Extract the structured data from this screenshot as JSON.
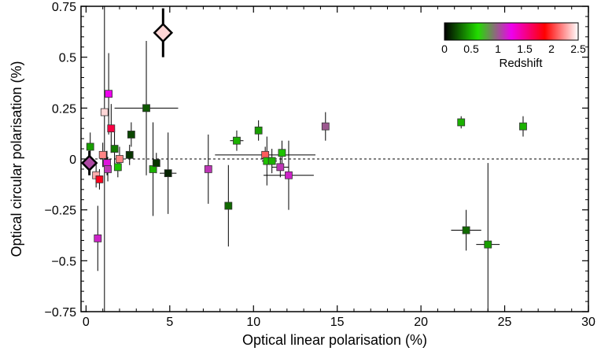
{
  "chart_data": {
    "type": "scatter",
    "xlabel": "Optical linear polarisation (%)",
    "ylabel": "Optical circular polarisation (%)",
    "xlim": [
      -0.3,
      30
    ],
    "ylim": [
      -0.75,
      0.75
    ],
    "x_ticks": [
      0,
      5,
      10,
      15,
      20,
      25,
      30
    ],
    "x_tick_labels": [
      "0",
      "5",
      "10",
      "15",
      "20",
      "25",
      "30"
    ],
    "y_ticks": [
      0.75,
      0.5,
      0.25,
      0,
      -0.25,
      -0.5,
      -0.75
    ],
    "y_tick_labels": [
      "0.75",
      "0.5",
      "0.25",
      "0",
      "−0.25",
      "−0.5",
      "−0.75"
    ],
    "zero_line": "dashed",
    "colorbar": {
      "label": "Redshift",
      "range": [
        0,
        2.5
      ],
      "ticks": [
        0,
        0.5,
        1,
        1.5,
        2,
        2.5
      ],
      "tick_labels": [
        "0",
        "0.5",
        "1",
        "1.5",
        "2",
        "2.5"
      ],
      "stops": [
        "#000000",
        "#22dd00",
        "#ee00ee",
        "#ff0000",
        "#ffffff"
      ],
      "placement": "top-right"
    },
    "points": [
      {
        "x": 4.6,
        "y": 0.62,
        "yerr": 0.12,
        "xerr": 0.1,
        "z": 2.4,
        "marker": "diamond"
      },
      {
        "x": 0.2,
        "y": -0.02,
        "yerr": 0.06,
        "xerr": 0.3,
        "z": 1.05,
        "marker": "diamond"
      },
      {
        "x": 0.25,
        "y": 0.06,
        "yerr": 0.07,
        "xerr": 0.1,
        "z": 0.45,
        "marker": "square"
      },
      {
        "x": 0.6,
        "y": -0.08,
        "yerr": 0.06,
        "xerr": 0.1,
        "z": 2.3,
        "marker": "square"
      },
      {
        "x": 0.7,
        "y": -0.39,
        "yerr": 0.16,
        "xerr": 0.1,
        "z": 1.15,
        "marker": "square"
      },
      {
        "x": 0.8,
        "y": -0.1,
        "yerr": 0.05,
        "xerr": 0.1,
        "z": 1.8,
        "marker": "square"
      },
      {
        "x": 1.0,
        "y": 0.02,
        "yerr": 0.06,
        "xerr": 0.1,
        "z": 2.2,
        "marker": "square"
      },
      {
        "x": 1.1,
        "y": 0.23,
        "yerr": 0.98,
        "xerr": 0.1,
        "z": 2.4,
        "marker": "square"
      },
      {
        "x": 1.25,
        "y": -0.02,
        "yerr": 0.06,
        "xerr": 0.1,
        "z": 1.2,
        "marker": "square"
      },
      {
        "x": 1.3,
        "y": -0.05,
        "yerr": 0.06,
        "xerr": 0.1,
        "z": 1.1,
        "marker": "square"
      },
      {
        "x": 1.35,
        "y": 0.32,
        "yerr": 0.2,
        "xerr": 0.1,
        "z": 1.25,
        "marker": "square"
      },
      {
        "x": 1.5,
        "y": 0.15,
        "yerr": 0.12,
        "xerr": 0.1,
        "z": 1.7,
        "marker": "square"
      },
      {
        "x": 1.7,
        "y": 0.05,
        "yerr": 0.1,
        "xerr": 0.1,
        "z": 0.35,
        "marker": "square"
      },
      {
        "x": 1.9,
        "y": -0.04,
        "yerr": 0.05,
        "xerr": 0.1,
        "z": 0.55,
        "marker": "square"
      },
      {
        "x": 2.0,
        "y": 0.0,
        "yerr": 0.06,
        "xerr": 0.1,
        "z": 2.2,
        "marker": "square"
      },
      {
        "x": 2.6,
        "y": 0.02,
        "yerr": 0.05,
        "xerr": 0.1,
        "z": 0.15,
        "marker": "square"
      },
      {
        "x": 2.7,
        "y": 0.12,
        "yerr": 0.06,
        "xerr": 0.1,
        "z": 0.2,
        "marker": "square"
      },
      {
        "x": 3.6,
        "y": 0.25,
        "yerr": 0.33,
        "xerr": 1.9,
        "z": 0.25,
        "marker": "square"
      },
      {
        "x": 4.0,
        "y": -0.05,
        "yerr": 0.23,
        "xerr": 0.15,
        "z": 0.5,
        "marker": "square"
      },
      {
        "x": 4.2,
        "y": -0.02,
        "yerr": 0.05,
        "xerr": 0.1,
        "z": 0.15,
        "marker": "square"
      },
      {
        "x": 4.9,
        "y": -0.07,
        "yerr": 0.2,
        "xerr": 0.5,
        "z": 0.1,
        "marker": "square"
      },
      {
        "x": 7.3,
        "y": -0.05,
        "yerr": 0.17,
        "xerr": 0.2,
        "z": 1.1,
        "marker": "square"
      },
      {
        "x": 8.5,
        "y": -0.23,
        "yerr": 0.2,
        "xerr": 0.1,
        "z": 0.3,
        "marker": "square"
      },
      {
        "x": 9.0,
        "y": 0.09,
        "yerr": 0.05,
        "xerr": 0.4,
        "z": 0.5,
        "marker": "square"
      },
      {
        "x": 10.3,
        "y": 0.14,
        "yerr": 0.05,
        "xerr": 0.1,
        "z": 0.45,
        "marker": "square"
      },
      {
        "x": 10.7,
        "y": 0.02,
        "yerr": 0.04,
        "xerr": 3.0,
        "z": 2.1,
        "marker": "square"
      },
      {
        "x": 10.8,
        "y": -0.01,
        "yerr": 0.12,
        "xerr": 0.3,
        "z": 0.55,
        "marker": "square"
      },
      {
        "x": 11.1,
        "y": -0.01,
        "yerr": 0.06,
        "xerr": 0.3,
        "z": 0.5,
        "marker": "square"
      },
      {
        "x": 11.6,
        "y": -0.04,
        "yerr": 0.05,
        "xerr": 0.5,
        "z": 1.1,
        "marker": "square"
      },
      {
        "x": 11.7,
        "y": 0.03,
        "yerr": 0.06,
        "xerr": 0.2,
        "z": 0.55,
        "marker": "square"
      },
      {
        "x": 12.1,
        "y": -0.08,
        "yerr": 0.17,
        "xerr": 1.5,
        "z": 1.15,
        "marker": "square"
      },
      {
        "x": 14.3,
        "y": 0.16,
        "yerr": 0.07,
        "xerr": 0.1,
        "z": 1.0,
        "marker": "square"
      },
      {
        "x": 22.4,
        "y": 0.18,
        "yerr": 0.03,
        "xerr": 0.1,
        "z": 0.5,
        "marker": "square"
      },
      {
        "x": 22.7,
        "y": -0.35,
        "yerr": 0.1,
        "xerr": 0.9,
        "z": 0.3,
        "marker": "square"
      },
      {
        "x": 24.0,
        "y": -0.42,
        "yerr": 0.4,
        "xerr": 0.7,
        "z": 0.45,
        "marker": "square"
      },
      {
        "x": 26.1,
        "y": 0.16,
        "yerr": 0.05,
        "xerr": 0.1,
        "z": 0.5,
        "marker": "square"
      }
    ]
  }
}
